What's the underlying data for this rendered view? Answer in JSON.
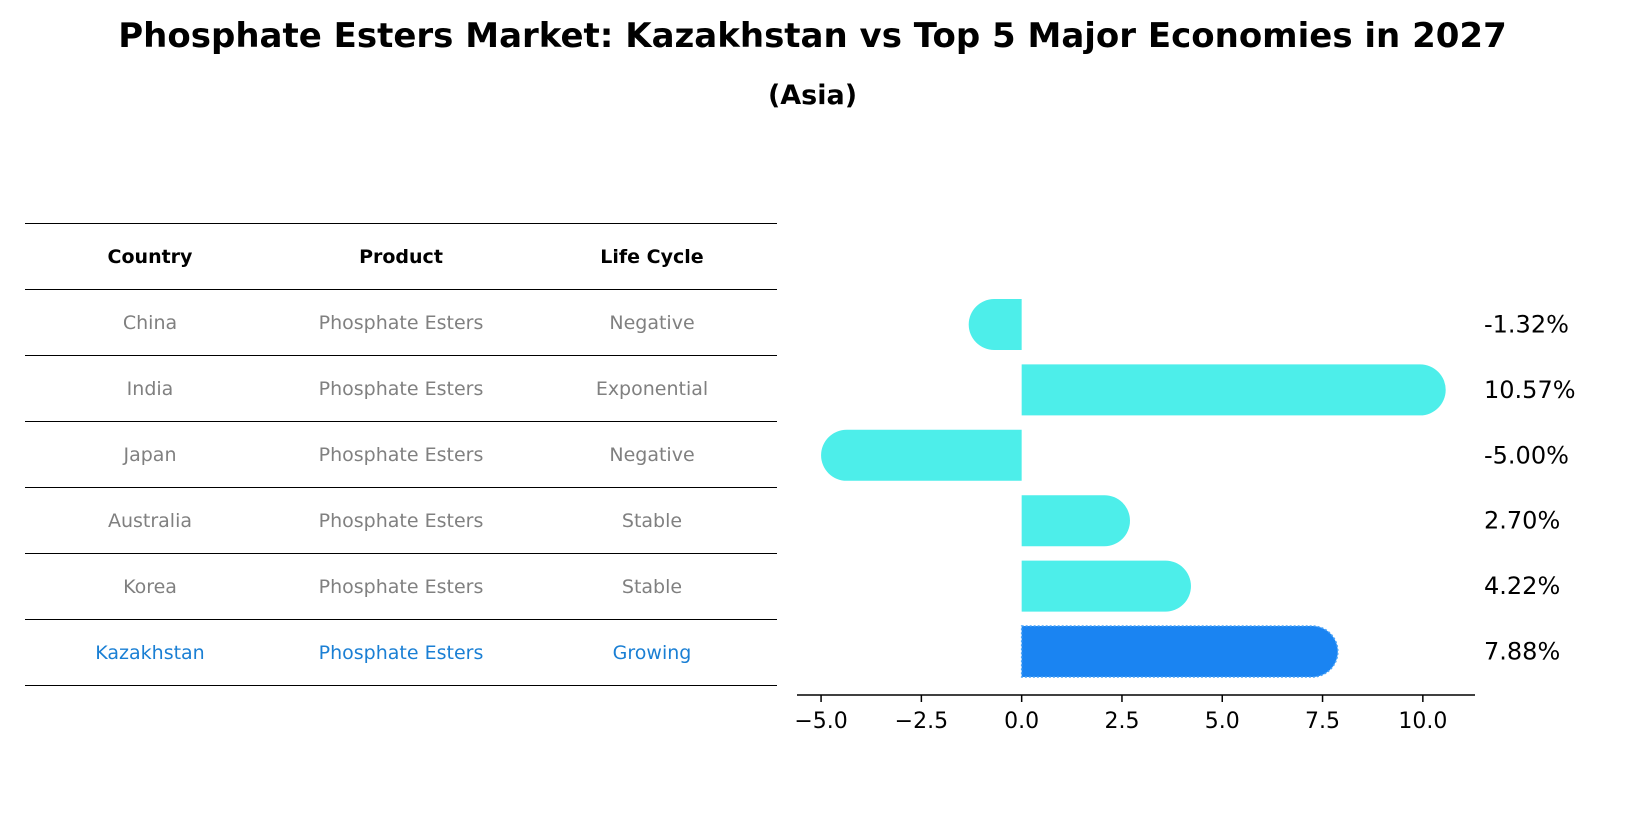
{
  "title": "Phosphate Esters Market: Kazakhstan vs Top 5 Major Economies in 2027",
  "subtitle": "(Asia)",
  "table": {
    "headers": [
      "Country",
      "Product",
      "Life Cycle"
    ],
    "rows": [
      [
        "China",
        "Phosphate Esters",
        "Negative"
      ],
      [
        "India",
        "Phosphate Esters",
        "Exponential"
      ],
      [
        "Japan",
        "Phosphate Esters",
        "Negative"
      ],
      [
        "Australia",
        "Phosphate Esters",
        "Stable"
      ],
      [
        "Korea",
        "Phosphate Esters",
        "Stable"
      ],
      [
        "Kazakhstan",
        "Phosphate Esters",
        "Growing"
      ]
    ],
    "highlight_row": 5
  },
  "chart_data": {
    "type": "bar",
    "orientation": "horizontal",
    "categories": [
      "China",
      "India",
      "Japan",
      "Australia",
      "Korea",
      "Kazakhstan"
    ],
    "values": [
      -1.32,
      10.57,
      -5.0,
      2.7,
      4.22,
      7.88
    ],
    "value_labels": [
      "-1.32%",
      "10.57%",
      "-5.00%",
      "2.70%",
      "4.22%",
      "7.88%"
    ],
    "xlim": [
      -5.6,
      11.3
    ],
    "xticks": [
      -5.0,
      -2.5,
      0.0,
      2.5,
      5.0,
      7.5,
      10.0
    ],
    "xtick_labels": [
      "−5.0",
      "−2.5",
      "0.0",
      "2.5",
      "5.0",
      "7.5",
      "10.0"
    ],
    "colors": {
      "default": "#4deeea",
      "highlight": "#1a84f2",
      "text": "#000000",
      "muted_text": "#808080",
      "highlight_text": "#1a7fd4"
    },
    "highlight_index": 5,
    "grid": false,
    "legend": "none"
  }
}
